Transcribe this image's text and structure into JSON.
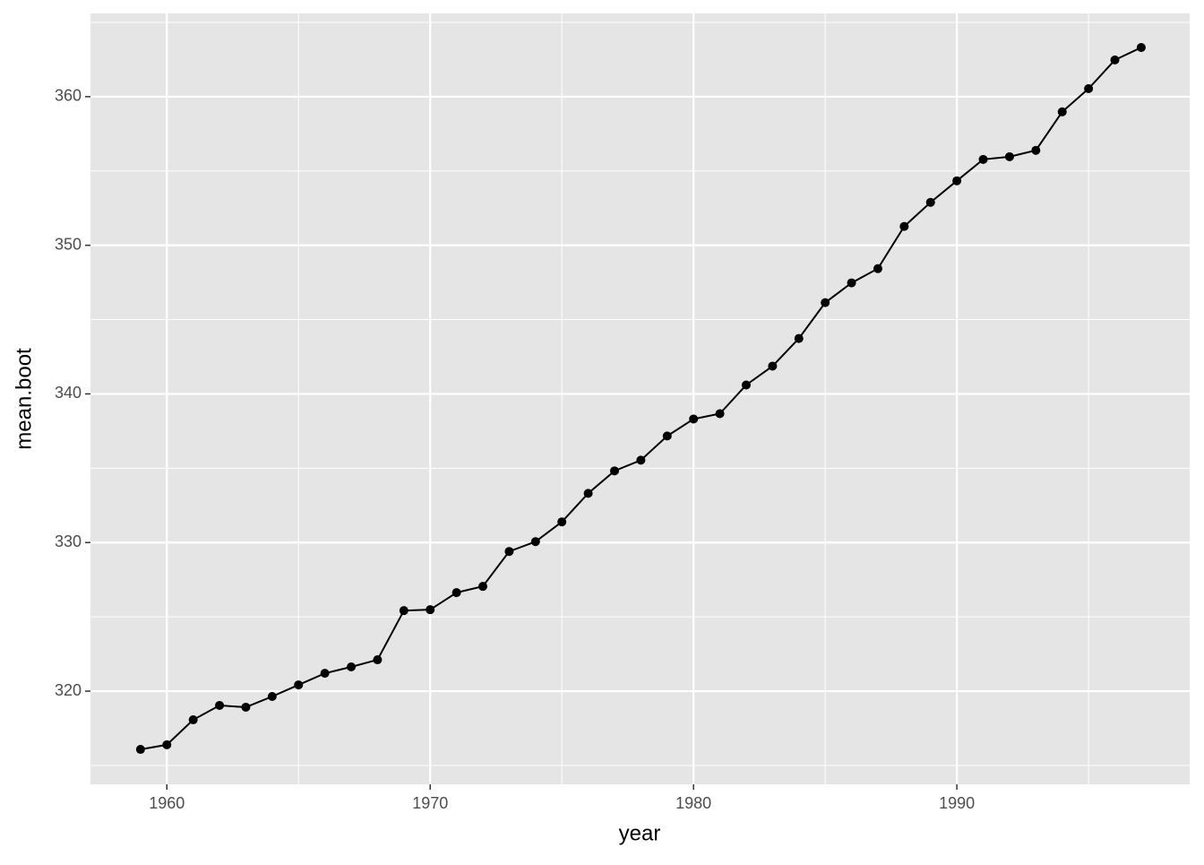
{
  "chart_data": {
    "type": "line",
    "x_label": "year",
    "y_label": "mean.boot",
    "x": [
      1959,
      1960,
      1961,
      1962,
      1963,
      1964,
      1965,
      1966,
      1967,
      1968,
      1969,
      1970,
      1971,
      1972,
      1973,
      1974,
      1975,
      1976,
      1977,
      1978,
      1979,
      1980,
      1981,
      1982,
      1983,
      1984,
      1985,
      1986,
      1987,
      1988,
      1989,
      1990,
      1991,
      1992,
      1993,
      1994,
      1995,
      1996,
      1997
    ],
    "series": [
      {
        "color": "#000000",
        "values": [
          316.08,
          316.39,
          318.07,
          319.04,
          318.92,
          319.64,
          320.42,
          321.2,
          321.63,
          322.11,
          325.42,
          325.48,
          326.63,
          327.05,
          329.4,
          330.06,
          331.39,
          333.31,
          334.82,
          335.54,
          337.17,
          338.31,
          338.67,
          340.6,
          341.87,
          343.73,
          346.14,
          347.47,
          348.43,
          351.27,
          352.89,
          354.34,
          355.78,
          355.96,
          356.39,
          358.98,
          360.54,
          362.47,
          363.31
        ]
      }
    ],
    "xlim": [
      1957.1,
      1998.84
    ],
    "ylim": [
      313.73,
      365.6
    ],
    "xticks": [
      1960,
      1970,
      1980,
      1990
    ],
    "yticks": [
      320,
      330,
      340,
      350,
      360
    ],
    "x_minor_ticks": [
      1965,
      1975,
      1985,
      1995
    ],
    "y_minor_ticks": [
      315,
      325,
      335,
      345,
      355,
      365
    ],
    "grid": true,
    "panel_color": "#e5e5e5",
    "grid_color": "#ffffff"
  }
}
